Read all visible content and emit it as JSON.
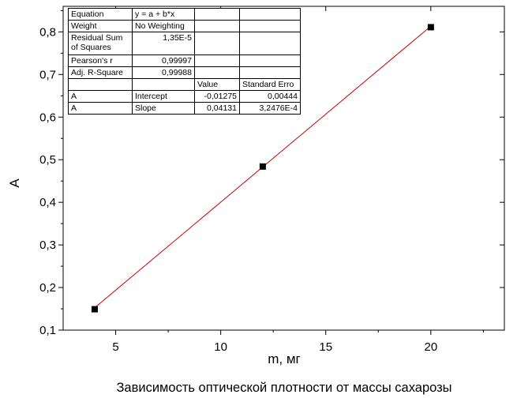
{
  "chart_data": {
    "type": "scatter",
    "xlabel": "m, мг",
    "ylabel": "A",
    "caption": "Зависимость оптической плотности от массы сахарозы",
    "xlim": [
      2.5,
      23.5
    ],
    "ylim": [
      0.1,
      0.86
    ],
    "x_ticks": [
      5,
      10,
      15,
      20
    ],
    "y_ticks": [
      0.1,
      0.2,
      0.3,
      0.4,
      0.5,
      0.6,
      0.7,
      0.8
    ],
    "x_tick_labels": [
      "5",
      "10",
      "15",
      "20"
    ],
    "y_tick_labels": [
      "0,1",
      "0,2",
      "0,3",
      "0,4",
      "0,5",
      "0,6",
      "0,7",
      "0,8"
    ],
    "grid": false,
    "marker": "square",
    "marker_color": "#000000",
    "line_color": "#cc0000",
    "series": [
      {
        "x": [
          4,
          12,
          20
        ],
        "y": [
          0.149,
          0.484,
          0.811
        ]
      }
    ],
    "fit": {
      "intercept": -0.01275,
      "slope": 0.04131,
      "x_range": [
        4,
        20
      ]
    }
  },
  "fit_table": {
    "rows": [
      [
        "Equation",
        "y = a + b*x",
        "",
        ""
      ],
      [
        "Weight",
        "No Weighting",
        "",
        ""
      ],
      [
        "Residual Sum of Squares",
        "1,35E-5",
        "",
        ""
      ],
      [
        "Pearson's r",
        "0,99997",
        "",
        ""
      ],
      [
        "Adj. R-Square",
        "0,99988",
        "",
        ""
      ],
      [
        "",
        "",
        "Value",
        "Standard Erro"
      ],
      [
        "A",
        "Intercept",
        "-0,01275",
        "0,00444"
      ],
      [
        "A",
        "Slope",
        "0,04131",
        "3,2476E-4"
      ]
    ]
  }
}
